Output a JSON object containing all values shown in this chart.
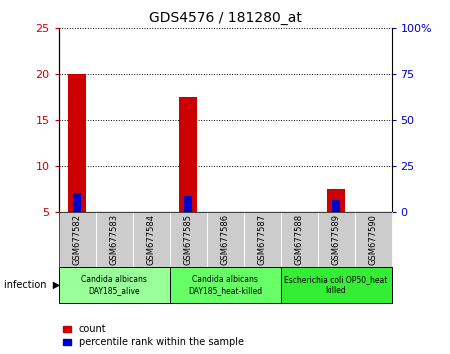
{
  "title": "GDS4576 / 181280_at",
  "samples": [
    "GSM677582",
    "GSM677583",
    "GSM677584",
    "GSM677585",
    "GSM677586",
    "GSM677587",
    "GSM677588",
    "GSM677589",
    "GSM677590"
  ],
  "count_values": [
    20.0,
    5.0,
    5.0,
    17.5,
    5.0,
    5.0,
    5.0,
    7.5,
    5.0
  ],
  "percentile_values": [
    10.8,
    null,
    null,
    9.0,
    null,
    null,
    null,
    6.5,
    null
  ],
  "ylim_left": [
    5,
    25
  ],
  "ylim_right": [
    0,
    100
  ],
  "yticks_left": [
    5,
    10,
    15,
    20,
    25
  ],
  "yticks_right": [
    0,
    25,
    50,
    75,
    100
  ],
  "ytick_labels_left": [
    "5",
    "10",
    "15",
    "20",
    "25"
  ],
  "ytick_labels_right": [
    "0",
    "25",
    "50",
    "75",
    "100%"
  ],
  "left_color": "#cc0000",
  "right_color": "#0000cc",
  "bar_color_red": "#cc0000",
  "bar_color_blue": "#0000cc",
  "groups": [
    {
      "label": "Candida albicans\nDAY185_alive",
      "start": 0,
      "end": 3,
      "color": "#99ff99"
    },
    {
      "label": "Candida albicans\nDAY185_heat-killed",
      "start": 3,
      "end": 6,
      "color": "#66ff66"
    },
    {
      "label": "Escherichia coli OP50_heat\nkilled",
      "start": 6,
      "end": 9,
      "color": "#33ee33"
    }
  ],
  "group_row_label": "infection",
  "legend_items": [
    {
      "color": "#cc0000",
      "label": "count"
    },
    {
      "color": "#0000cc",
      "label": "percentile rank within the sample"
    }
  ],
  "bar_width": 0.5,
  "blue_bar_width": 0.2,
  "base_value": 5.0,
  "grid_yticks": [
    10,
    15,
    20,
    25
  ],
  "title_fontsize": 10,
  "sample_label_fontsize": 6,
  "group_label_fontsize": 5.5,
  "legend_fontsize": 7,
  "yaxis_fontsize": 8
}
